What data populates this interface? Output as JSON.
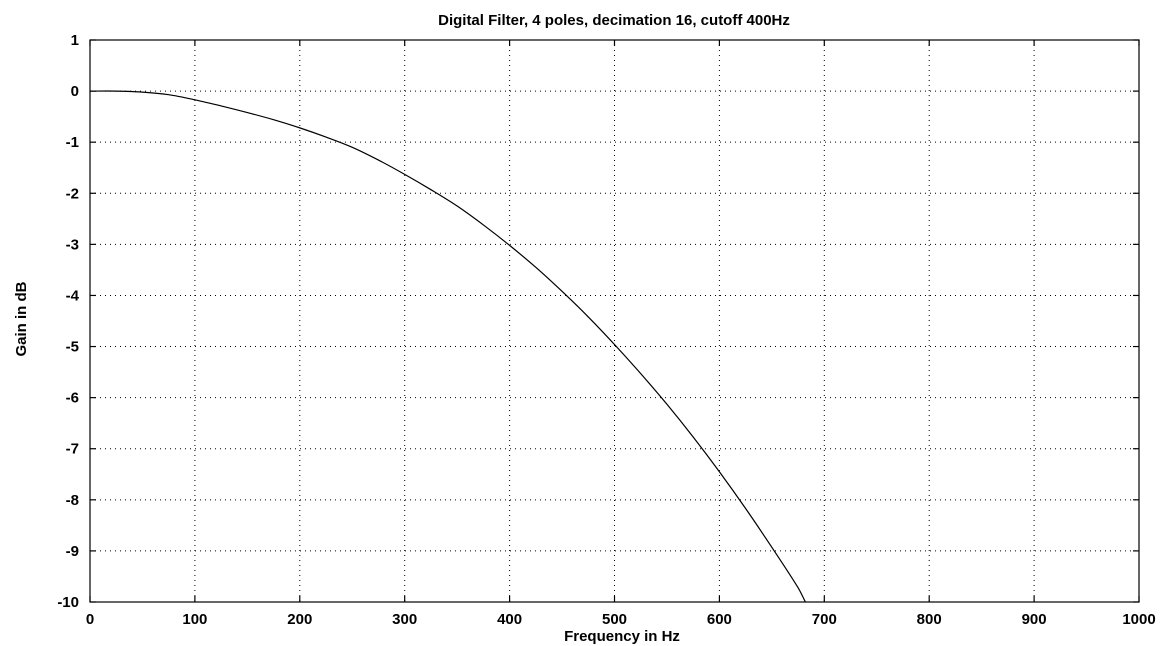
{
  "chart_data": {
    "type": "line",
    "title": "Digital Filter, 4 poles, decimation 16, cutoff 400Hz",
    "xlabel": "Frequency in Hz",
    "ylabel": "Gain in dB",
    "xlim": [
      0,
      1000
    ],
    "ylim": [
      -10,
      1
    ],
    "xticks": [
      0,
      100,
      200,
      300,
      400,
      500,
      600,
      700,
      800,
      900,
      1000
    ],
    "yticks": [
      1,
      0,
      -1,
      -2,
      -3,
      -4,
      -5,
      -6,
      -7,
      -8,
      -9,
      -10
    ],
    "grid": true,
    "series": [
      {
        "x": [
          0,
          25,
          50,
          75,
          100,
          125,
          150,
          175,
          200,
          225,
          250,
          275,
          300,
          325,
          350,
          375,
          400,
          425,
          450,
          475,
          500,
          525,
          550,
          575,
          600,
          625,
          650,
          675,
          682
        ],
        "values": [
          0,
          0,
          -0.02,
          -0.07,
          -0.17,
          -0.29,
          -0.42,
          -0.56,
          -0.72,
          -0.9,
          -1.1,
          -1.35,
          -1.63,
          -1.93,
          -2.25,
          -2.62,
          -3.02,
          -3.45,
          -3.92,
          -4.42,
          -4.96,
          -5.53,
          -6.13,
          -6.77,
          -7.45,
          -8.17,
          -8.93,
          -9.72,
          -10
        ]
      }
    ]
  }
}
